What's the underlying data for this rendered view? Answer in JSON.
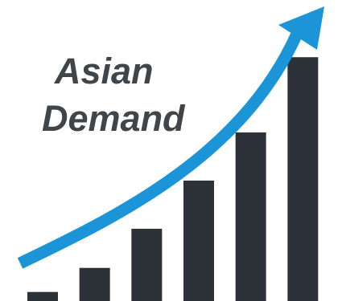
{
  "chart_data": {
    "type": "bar",
    "title_lines": [
      "Asian",
      "Demand"
    ],
    "categories": [
      "",
      "",
      "",
      "",
      "",
      ""
    ],
    "values": [
      3,
      11,
      24,
      40,
      56,
      81
    ],
    "ylim": [
      0,
      100
    ],
    "grid": false,
    "legend": "none",
    "trend_arrow": true,
    "colors": {
      "bars": "#2c3237",
      "arrow": "#1b95d8",
      "title": "#3f4549"
    }
  }
}
